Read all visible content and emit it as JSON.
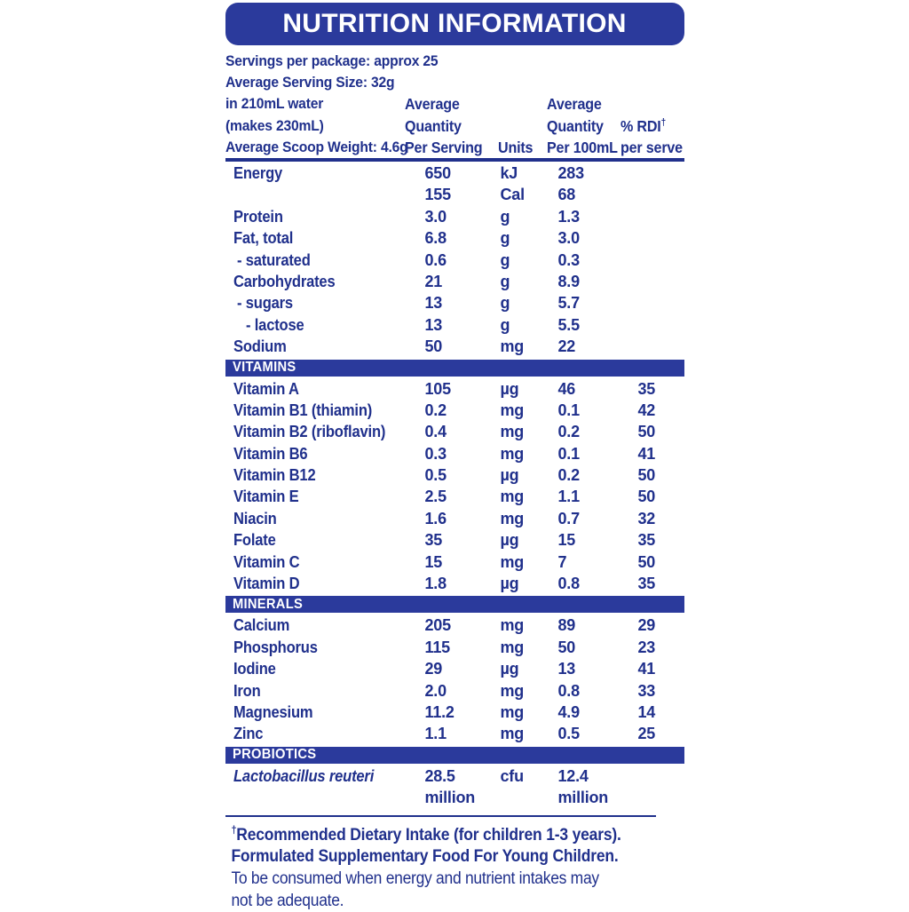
{
  "title": "NUTRITION INFORMATION",
  "colors": {
    "banner_blue": "#2b3a9c",
    "text_navy": "#20308c",
    "background": "#ffffff"
  },
  "header": {
    "info_lines": [
      "Servings per package: approx 25",
      "Average Serving Size: 32g",
      "in 210mL water",
      "(makes 230mL)",
      "Average Scoop Weight: 4.6g"
    ],
    "per_serving": [
      "Average",
      "Quantity",
      "Per Serving"
    ],
    "units_label": "Units",
    "per_100ml": [
      "Average",
      "Quantity",
      "Per 100mL"
    ],
    "rdi_label": "% RDI",
    "rdi_dagger": "†",
    "rdi_sub": "per serve"
  },
  "table": {
    "groups": [
      {
        "banner": "",
        "rows": [
          {
            "label": "Energy",
            "indent": 0,
            "qty": "650",
            "unit": "kJ",
            "q100": "283",
            "rdi": ""
          },
          {
            "label": "",
            "indent": 0,
            "qty": "155",
            "unit": "Cal",
            "q100": "68",
            "rdi": ""
          },
          {
            "label": "Protein",
            "indent": 0,
            "qty": "3.0",
            "unit": "g",
            "q100": "1.3",
            "rdi": ""
          },
          {
            "label": "Fat, total",
            "indent": 0,
            "qty": "6.8",
            "unit": "g",
            "q100": "3.0",
            "rdi": ""
          },
          {
            "label": "- saturated",
            "indent": 1,
            "qty": "0.6",
            "unit": "g",
            "q100": "0.3",
            "rdi": ""
          },
          {
            "label": "Carbohydrates",
            "indent": 0,
            "qty": "21",
            "unit": "g",
            "q100": "8.9",
            "rdi": ""
          },
          {
            "label": "- sugars",
            "indent": 1,
            "qty": "13",
            "unit": "g",
            "q100": "5.7",
            "rdi": ""
          },
          {
            "label": "- lactose",
            "indent": 2,
            "qty": "13",
            "unit": "g",
            "q100": "5.5",
            "rdi": ""
          },
          {
            "label": "Sodium",
            "indent": 0,
            "qty": "50",
            "unit": "mg",
            "q100": "22",
            "rdi": ""
          }
        ]
      },
      {
        "banner": "VITAMINS",
        "rows": [
          {
            "label": "Vitamin A",
            "indent": 0,
            "qty": "105",
            "unit": "µg",
            "q100": "46",
            "rdi": "35"
          },
          {
            "label": "Vitamin B1 (thiamin)",
            "indent": 0,
            "qty": "0.2",
            "unit": "mg",
            "q100": "0.1",
            "rdi": "42"
          },
          {
            "label": "Vitamin B2 (riboflavin)",
            "indent": 0,
            "qty": "0.4",
            "unit": "mg",
            "q100": "0.2",
            "rdi": "50"
          },
          {
            "label": "Vitamin B6",
            "indent": 0,
            "qty": "0.3",
            "unit": "mg",
            "q100": "0.1",
            "rdi": "41"
          },
          {
            "label": "Vitamin B12",
            "indent": 0,
            "qty": "0.5",
            "unit": "µg",
            "q100": "0.2",
            "rdi": "50"
          },
          {
            "label": "Vitamin E",
            "indent": 0,
            "qty": "2.5",
            "unit": "mg",
            "q100": "1.1",
            "rdi": "50"
          },
          {
            "label": "Niacin",
            "indent": 0,
            "qty": "1.6",
            "unit": "mg",
            "q100": "0.7",
            "rdi": "32"
          },
          {
            "label": "Folate",
            "indent": 0,
            "qty": "35",
            "unit": "µg",
            "q100": "15",
            "rdi": "35"
          },
          {
            "label": "Vitamin C",
            "indent": 0,
            "qty": "15",
            "unit": "mg",
            "q100": "7",
            "rdi": "50"
          },
          {
            "label": "Vitamin D",
            "indent": 0,
            "qty": "1.8",
            "unit": "µg",
            "q100": "0.8",
            "rdi": "35"
          }
        ]
      },
      {
        "banner": "MINERALS",
        "rows": [
          {
            "label": "Calcium",
            "indent": 0,
            "qty": "205",
            "unit": "mg",
            "q100": "89",
            "rdi": "29"
          },
          {
            "label": "Phosphorus",
            "indent": 0,
            "qty": "115",
            "unit": "mg",
            "q100": "50",
            "rdi": "23"
          },
          {
            "label": "Iodine",
            "indent": 0,
            "qty": "29",
            "unit": "µg",
            "q100": "13",
            "rdi": "41"
          },
          {
            "label": "Iron",
            "indent": 0,
            "qty": "2.0",
            "unit": "mg",
            "q100": "0.8",
            "rdi": "33"
          },
          {
            "label": "Magnesium",
            "indent": 0,
            "qty": "11.2",
            "unit": "mg",
            "q100": "4.9",
            "rdi": "14"
          },
          {
            "label": "Zinc",
            "indent": 0,
            "qty": "1.1",
            "unit": "mg",
            "q100": "0.5",
            "rdi": "25"
          }
        ]
      },
      {
        "banner": "PROBIOTICS",
        "rows": [
          {
            "label": "Lactobacillus reuteri",
            "indent": 0,
            "italic": true,
            "qty": "28.5 million",
            "unit": "cfu",
            "q100": "12.4 million",
            "rdi": ""
          }
        ]
      }
    ]
  },
  "footnotes": {
    "dagger": "†",
    "bold_lines": [
      "Recommended Dietary Intake (for children 1-3 years).",
      "Formulated Supplementary Food For Young Children."
    ],
    "normal_text": "To be consumed when energy and nutrient intakes may not be adequate."
  }
}
